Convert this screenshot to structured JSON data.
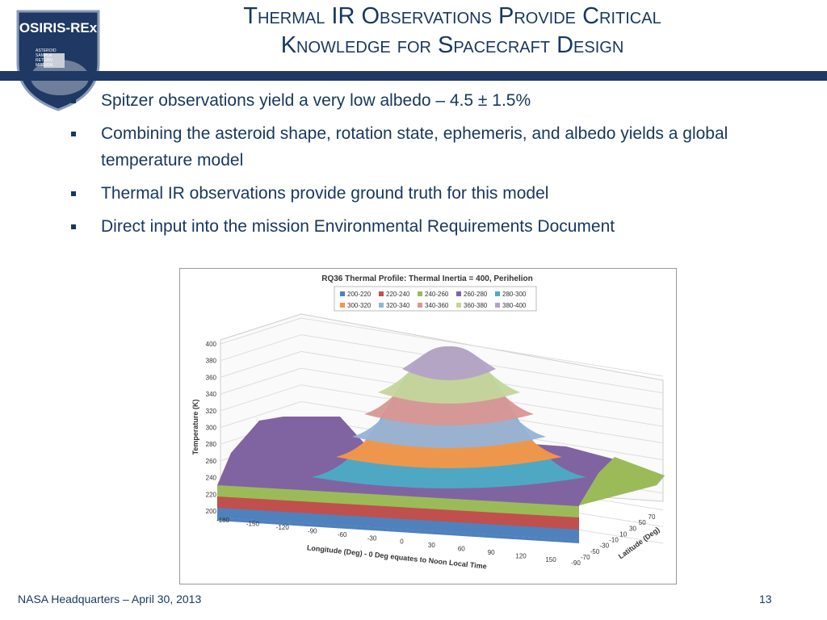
{
  "title": [
    "Thermal IR Observations Provide Critical",
    "Knowledge for Spacecraft Design"
  ],
  "logo": {
    "name": "OSIRIS-REx",
    "tagline": [
      "ASTEROID",
      "SAMPLE",
      "RETURN",
      "MISSION"
    ]
  },
  "bullets": [
    "Spitzer observations yield a very low albedo – 4.5 ± 1.5%",
    "Combining the asteroid shape, rotation state, ephemeris, and albedo yields a global temperature model",
    "Thermal IR observations provide ground truth for this model",
    "Direct input into the mission Environmental Requirements Document"
  ],
  "figure": {
    "title": "RQ36 Thermal Profile: Thermal Inertia = 400, Perihelion",
    "legend": [
      {
        "label": "200-220",
        "color": "#4f81bd"
      },
      {
        "label": "220-240",
        "color": "#c0504d"
      },
      {
        "label": "240-260",
        "color": "#9bbb59"
      },
      {
        "label": "260-280",
        "color": "#8064a2"
      },
      {
        "label": "280-300",
        "color": "#4bacc6"
      },
      {
        "label": "300-320",
        "color": "#f79646"
      },
      {
        "label": "320-340",
        "color": "#95b3d7"
      },
      {
        "label": "340-360",
        "color": "#d99694"
      },
      {
        "label": "360-380",
        "color": "#c3d69b"
      },
      {
        "label": "380-400",
        "color": "#b3a2c7"
      }
    ],
    "z_axis_title": "Temperature (K)",
    "z_ticks": [
      400,
      380,
      360,
      340,
      320,
      300,
      280,
      260,
      240,
      220,
      200
    ],
    "x_axis_title": "Longitude (Deg) - 0 Deg equates to Noon Local Time",
    "x_ticks": [
      -180,
      -150,
      -120,
      -90,
      -60,
      -30,
      0,
      30,
      60,
      90,
      120,
      150
    ],
    "y_axis_title": "Latitude (Deg)",
    "y_ticks": [
      -90,
      -70,
      -50,
      -30,
      -10,
      10,
      30,
      50,
      70
    ]
  },
  "footer": {
    "left": "NASA Headquarters – April 30, 2013",
    "page": "13"
  }
}
